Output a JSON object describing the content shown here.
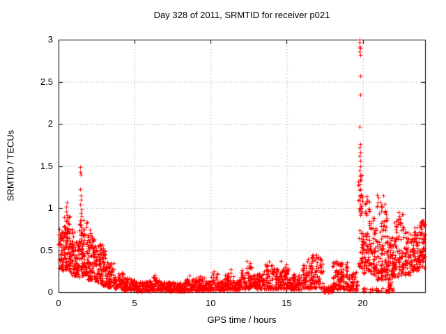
{
  "page": {
    "background": "#ffffff"
  },
  "chart_data": {
    "type": "scatter",
    "title": "Day 328 of 2011, SRMTID for receiver p021",
    "xlabel": "GPS time / hours",
    "ylabel": "SRMTID / TECUs",
    "xlim": [
      0,
      24.1
    ],
    "ylim": [
      0,
      3
    ],
    "xticks": [
      0,
      5,
      10,
      15,
      20
    ],
    "xtick_labels": [
      "0",
      "5",
      "10",
      "15",
      "20"
    ],
    "yticks": [
      0,
      0.5,
      1,
      1.5,
      2,
      2.5,
      3
    ],
    "ytick_labels": [
      "0",
      "0.5",
      "1",
      "1.5",
      "2",
      "2.5",
      "3"
    ],
    "grid": true,
    "grid_color": "#ababab",
    "border_color": "#000000",
    "marker": {
      "shape": "plus",
      "color": "#ff0000",
      "size": 7
    },
    "series_name": "SRMTID",
    "seed": 1234,
    "cloud_segments": [
      [
        0.02,
        0.35,
        55,
        0.22,
        0.72,
        0.9
      ],
      [
        0.35,
        0.75,
        80,
        0.25,
        0.9,
        1.2
      ],
      [
        0.75,
        1.1,
        60,
        0.2,
        0.78,
        1.3
      ],
      [
        1.1,
        1.38,
        40,
        0.18,
        0.6,
        1.2
      ],
      [
        1.38,
        1.55,
        40,
        0.25,
        1.0,
        1.1
      ],
      [
        1.55,
        1.9,
        60,
        0.2,
        0.88,
        1.4
      ],
      [
        1.9,
        2.4,
        85,
        0.15,
        0.68,
        1.4
      ],
      [
        2.4,
        2.8,
        65,
        0.12,
        0.6,
        1.4
      ],
      [
        2.8,
        3.15,
        55,
        0.08,
        0.5,
        1.5
      ],
      [
        3.15,
        3.65,
        60,
        0.06,
        0.36,
        1.5
      ],
      [
        3.65,
        4.25,
        60,
        0.04,
        0.25,
        1.5
      ],
      [
        4.25,
        5.0,
        80,
        0.02,
        0.17,
        1.4
      ],
      [
        5.0,
        6.2,
        115,
        0.01,
        0.13,
        1.3
      ],
      [
        6.2,
        6.6,
        40,
        0.02,
        0.19,
        1.5
      ],
      [
        6.6,
        8.3,
        160,
        0.01,
        0.12,
        1.3
      ],
      [
        8.3,
        9.0,
        70,
        0.02,
        0.16,
        1.4
      ],
      [
        9.0,
        9.6,
        60,
        0.02,
        0.18,
        1.5
      ],
      [
        9.6,
        10.0,
        40,
        0.02,
        0.13,
        1.3
      ],
      [
        10.0,
        10.5,
        50,
        0.03,
        0.23,
        1.7
      ],
      [
        10.5,
        10.9,
        40,
        0.02,
        0.13,
        1.3
      ],
      [
        10.9,
        11.6,
        70,
        0.03,
        0.26,
        1.7
      ],
      [
        11.6,
        12.0,
        40,
        0.03,
        0.16,
        1.4
      ],
      [
        12.0,
        12.7,
        70,
        0.04,
        0.33,
        1.7
      ],
      [
        12.7,
        13.5,
        80,
        0.04,
        0.22,
        1.5
      ],
      [
        13.5,
        14.3,
        80,
        0.04,
        0.33,
        1.7
      ],
      [
        14.3,
        15.2,
        90,
        0.04,
        0.3,
        1.7
      ],
      [
        15.2,
        16.0,
        75,
        0.03,
        0.22,
        1.5
      ],
      [
        16.0,
        16.6,
        60,
        0.05,
        0.37,
        1.6
      ],
      [
        16.6,
        17.4,
        85,
        0.05,
        0.44,
        1.5
      ],
      [
        17.4,
        18.0,
        45,
        0.0,
        0.07,
        1.1
      ],
      [
        18.0,
        19.0,
        110,
        0.03,
        0.36,
        1.5
      ],
      [
        19.0,
        19.65,
        60,
        0.02,
        0.24,
        1.5
      ],
      [
        19.7,
        19.98,
        45,
        0.3,
        1.5,
        1.3
      ],
      [
        19.95,
        20.15,
        25,
        0.2,
        0.75,
        1.3
      ],
      [
        20.15,
        20.5,
        55,
        0.25,
        1.08,
        1.5
      ],
      [
        20.5,
        20.85,
        55,
        0.2,
        0.95,
        1.4
      ],
      [
        20.85,
        21.3,
        60,
        0.15,
        1.1,
        1.5
      ],
      [
        21.3,
        21.6,
        50,
        0.15,
        1.0,
        1.5
      ],
      [
        21.6,
        21.9,
        45,
        0.05,
        0.65,
        1.3
      ],
      [
        20.0,
        22.0,
        25,
        0.0,
        0.05,
        1.0
      ],
      [
        21.9,
        22.3,
        55,
        0.15,
        0.85,
        1.4
      ],
      [
        22.3,
        22.7,
        55,
        0.2,
        0.95,
        1.4
      ],
      [
        22.7,
        23.2,
        60,
        0.2,
        0.72,
        1.2
      ],
      [
        23.2,
        23.7,
        70,
        0.25,
        0.78,
        1.2
      ],
      [
        23.7,
        24.08,
        70,
        0.28,
        0.85,
        1.1
      ]
    ],
    "points": [
      [
        19.8,
        3.0
      ],
      [
        19.78,
        2.97
      ],
      [
        19.8,
        2.92
      ],
      [
        19.83,
        2.9
      ],
      [
        19.81,
        2.86
      ],
      [
        19.84,
        2.82
      ],
      [
        19.83,
        2.57
      ],
      [
        19.85,
        2.35
      ],
      [
        19.81,
        1.97
      ],
      [
        19.84,
        1.76
      ],
      [
        19.8,
        1.72
      ],
      [
        19.85,
        1.66
      ],
      [
        19.78,
        1.62
      ],
      [
        19.82,
        1.56
      ],
      [
        19.86,
        1.5
      ],
      [
        19.79,
        1.45
      ],
      [
        19.83,
        1.4
      ],
      [
        19.87,
        1.34
      ],
      [
        19.8,
        1.28
      ],
      [
        19.84,
        1.22
      ],
      [
        19.88,
        1.16
      ],
      [
        19.81,
        1.1
      ],
      [
        19.85,
        1.04
      ],
      [
        0.05,
        0.75
      ],
      [
        0.08,
        0.68
      ],
      [
        0.52,
        1.02
      ],
      [
        0.55,
        1.07
      ],
      [
        0.5,
        0.96
      ],
      [
        0.57,
        0.92
      ],
      [
        0.6,
        0.88
      ],
      [
        1.42,
        1.49
      ],
      [
        1.44,
        1.43
      ],
      [
        1.46,
        1.4
      ],
      [
        1.43,
        1.22
      ],
      [
        1.45,
        1.15
      ],
      [
        1.47,
        1.1
      ],
      [
        1.41,
        1.04
      ],
      [
        2.06,
        0.74
      ],
      [
        2.12,
        0.7
      ],
      [
        2.9,
        0.56
      ],
      [
        2.93,
        0.52
      ],
      [
        6.32,
        0.21
      ],
      [
        8.6,
        0.2
      ],
      [
        9.3,
        0.19
      ],
      [
        10.22,
        0.25
      ],
      [
        11.3,
        0.27
      ],
      [
        12.35,
        0.37
      ],
      [
        12.62,
        0.35
      ],
      [
        13.85,
        0.36
      ],
      [
        14.62,
        0.37
      ],
      [
        15.0,
        0.33
      ],
      [
        16.4,
        0.4
      ],
      [
        16.95,
        0.45
      ],
      [
        17.1,
        0.42
      ],
      [
        18.3,
        0.37
      ],
      [
        18.45,
        0.34
      ],
      [
        20.25,
        1.14
      ],
      [
        20.28,
        1.1
      ],
      [
        20.22,
        1.06
      ],
      [
        20.95,
        1.16
      ],
      [
        21.05,
        1.12
      ],
      [
        21.15,
        1.07
      ],
      [
        21.35,
        1.15
      ],
      [
        21.42,
        1.05
      ],
      [
        22.35,
        0.95
      ],
      [
        22.42,
        0.9
      ],
      [
        23.95,
        0.85
      ],
      [
        24.0,
        0.8
      ]
    ],
    "dense_blobs": [
      [
        14.98,
        0.24
      ],
      [
        21.62,
        0.02
      ]
    ]
  },
  "layout_note": "single scatter panel, no legend"
}
